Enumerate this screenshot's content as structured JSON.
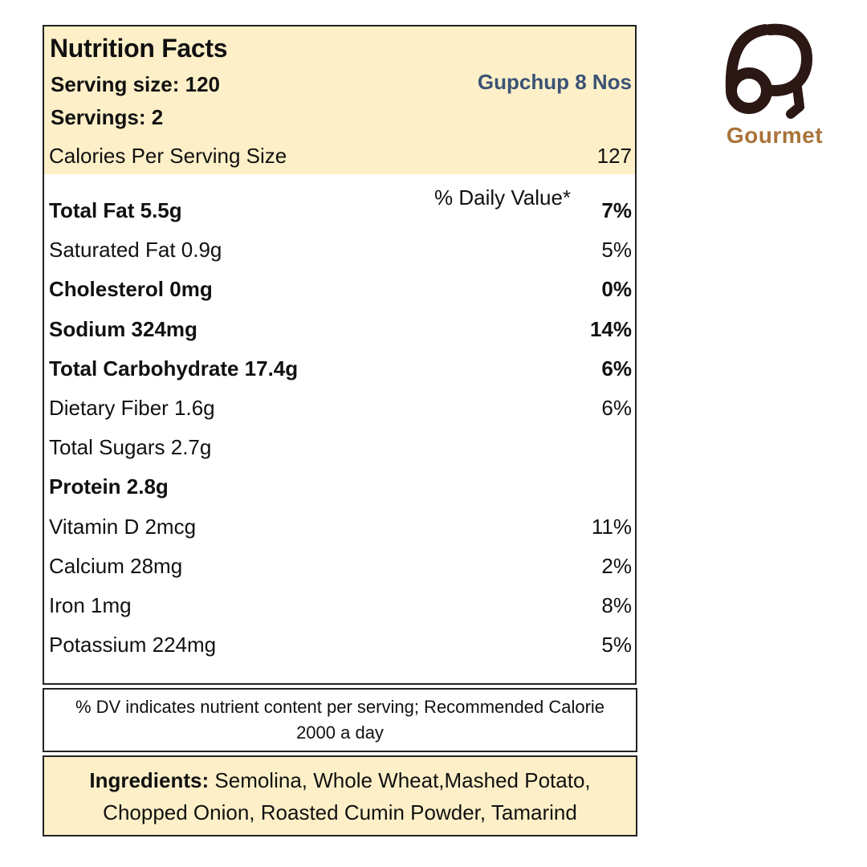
{
  "label": {
    "title": "Nutrition Facts",
    "serving_size": "Serving size: 120",
    "product_name": "Gupchup 8 Nos",
    "servings": "Servings: 2",
    "calories_label": "Calories Per Serving Size",
    "calories_value": "127",
    "daily_value_header": "% Daily Value*",
    "nutrients": [
      {
        "name": "Total Fat 5.5g",
        "dv": "7%",
        "bold": true
      },
      {
        "name": "Saturated Fat 0.9g",
        "dv": "5%",
        "bold": false
      },
      {
        "name": "Cholesterol 0mg",
        "dv": "0%",
        "bold": true
      },
      {
        "name": "Sodium 324mg",
        "dv": "14%",
        "bold": true
      },
      {
        "name": "Total Carbohydrate 17.4g",
        "dv": "6%",
        "bold": true
      },
      {
        "name": "Dietary Fiber 1.6g",
        "dv": "6%",
        "bold": false
      },
      {
        "name": "Total Sugars 2.7g",
        "dv": "",
        "bold": false
      },
      {
        "name": "Protein 2.8g",
        "dv": "",
        "bold": true
      },
      {
        "name": "Vitamin D 2mcg",
        "dv": "11%",
        "bold": false
      },
      {
        "name": "Calcium 28mg",
        "dv": "2%",
        "bold": false
      },
      {
        "name": "Iron 1mg",
        "dv": "8%",
        "bold": false
      },
      {
        "name": "Potassium 224mg",
        "dv": "5%",
        "bold": false
      }
    ]
  },
  "note": {
    "text": "% DV indicates nutrient content per serving; Recommended Calorie 2000 a day"
  },
  "ingredients": {
    "heading": "Ingredients:",
    "text": "Semolina, Whole Wheat,Mashed Potato, Chopped Onion, Roasted Cumin Powder, Tamarind"
  },
  "logo": {
    "brand_text": "Gourmet",
    "icon": "6q-monogram-icon"
  },
  "colors": {
    "header_background": "#fdf0c8",
    "product_name": "#3b5275",
    "logo_mark": "#2b1713",
    "logo_text": "#a9743a",
    "border": "#222222"
  }
}
